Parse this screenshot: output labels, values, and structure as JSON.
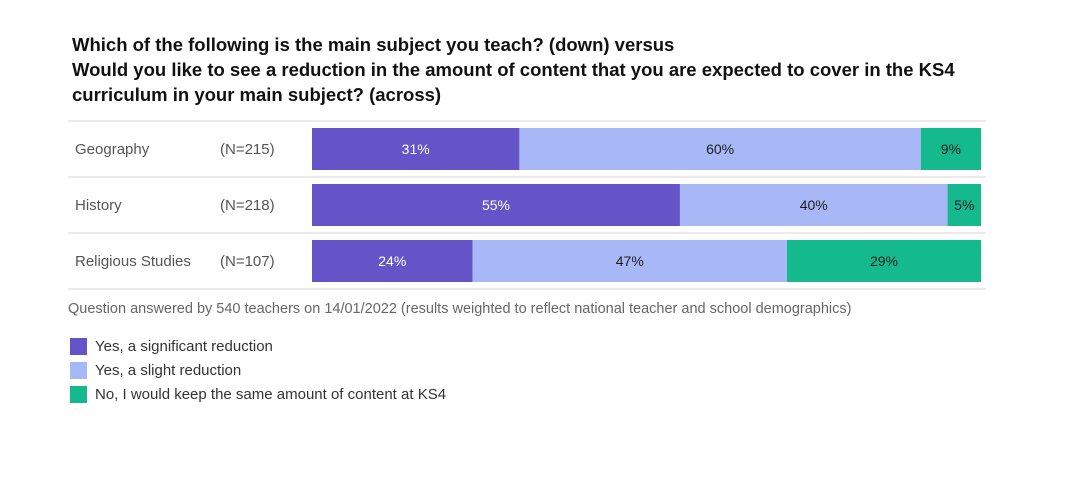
{
  "chart_data": {
    "type": "bar",
    "orientation": "horizontal",
    "stacked": true,
    "title_lines": [
      "Which of the following is the main subject you teach? (down) versus",
      "Would you like to see a reduction in the amount of content that you are expected to cover in the KS4",
      "curriculum in your main subject? (across)"
    ],
    "categories": [
      "Geography",
      "History",
      "Religious Studies"
    ],
    "sample_sizes": [
      "(N=215)",
      "(N=218)",
      "(N=107)"
    ],
    "series": [
      {
        "name": "Yes, a significant reduction",
        "color": "#6554c8",
        "text_color": "#ffffff",
        "values": [
          31,
          55,
          24
        ]
      },
      {
        "name": "Yes, a slight reduction",
        "color": "#a8b7f5",
        "text_color": "#1e1e1e",
        "values": [
          60,
          40,
          47
        ]
      },
      {
        "name": "No, I would keep the same amount of content at KS4",
        "color": "#14ba8e",
        "text_color": "#1e1e1e",
        "values": [
          9,
          5,
          29
        ]
      }
    ],
    "value_suffix": "%",
    "xlim": [
      0,
      100
    ],
    "grid": false,
    "legend_position": "bottom-left",
    "note": "Question answered by 540 teachers on 14/01/2022 (results weighted to reflect national teacher and school demographics)"
  }
}
